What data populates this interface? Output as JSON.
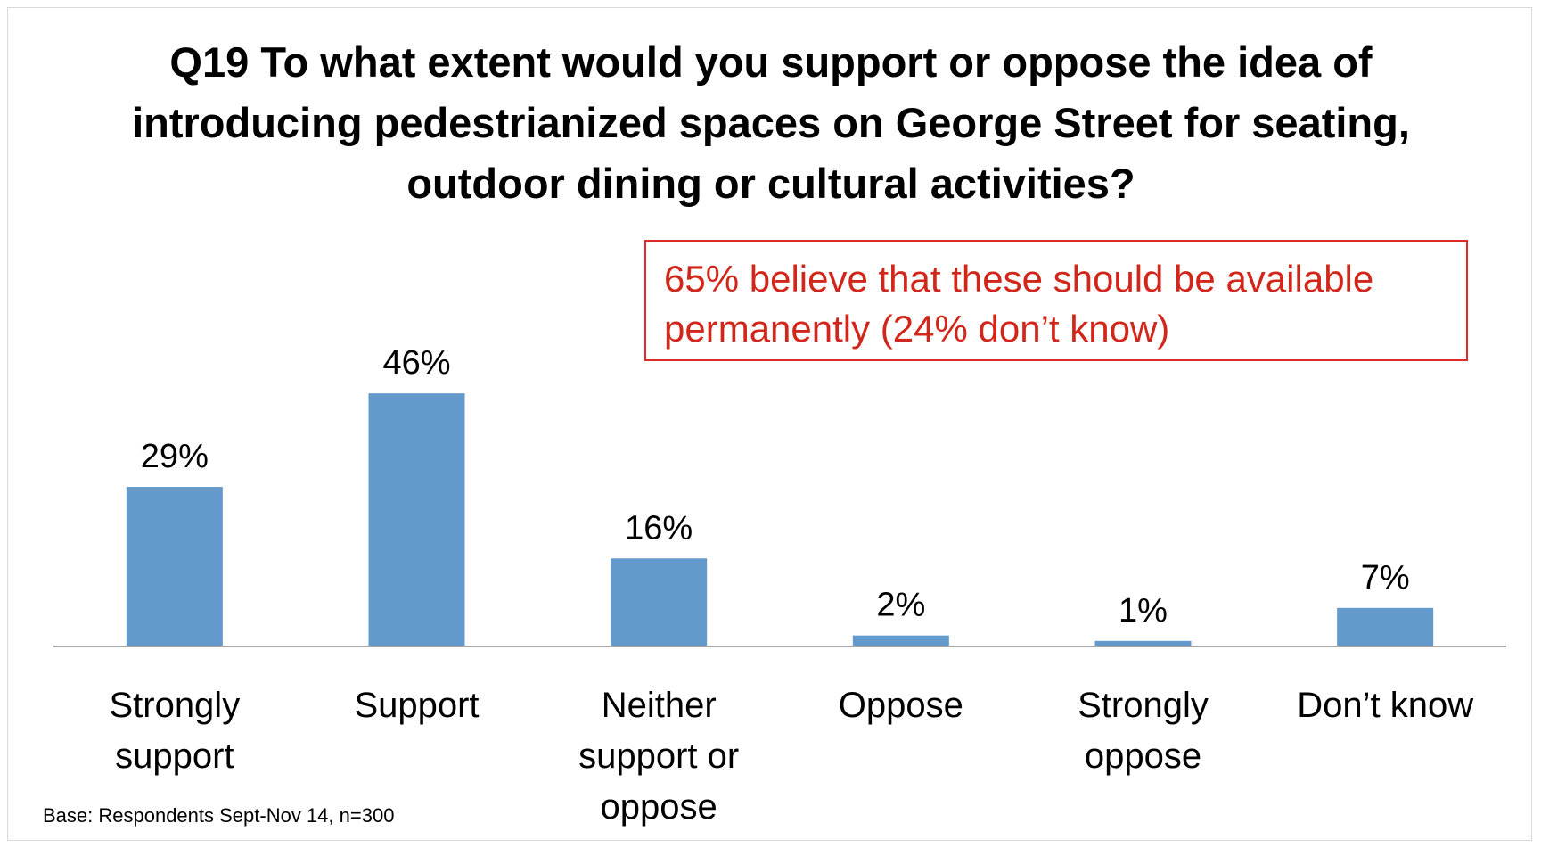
{
  "title": "Q19 To what extent would you support or oppose the idea of introducing pedestrianized spaces on George Street for seating, outdoor dining or cultural activities?",
  "callout": "65% believe that these should be available permanently (24% don’t know)",
  "footnote": "Base: Respondents Sept-Nov 14, n=300",
  "colors": {
    "bar": "#6399cb",
    "callout": "#d1261a",
    "axis": "#8c8c8c"
  },
  "chart_data": {
    "type": "bar",
    "categories": [
      "Strongly support",
      "Support",
      "Neither support or oppose",
      "Oppose",
      "Strongly oppose",
      "Don’t know"
    ],
    "category_lines": [
      [
        "Strongly",
        "support"
      ],
      [
        "Support"
      ],
      [
        "Neither",
        "support or",
        "oppose"
      ],
      [
        "Oppose"
      ],
      [
        "Strongly",
        "oppose"
      ],
      [
        "Don’t know"
      ]
    ],
    "values": [
      29,
      46,
      16,
      2,
      1,
      7
    ],
    "data_labels": [
      "29%",
      "46%",
      "16%",
      "2%",
      "1%",
      "7%"
    ],
    "ylim": [
      0,
      50
    ],
    "grid": false,
    "legend": "none"
  }
}
